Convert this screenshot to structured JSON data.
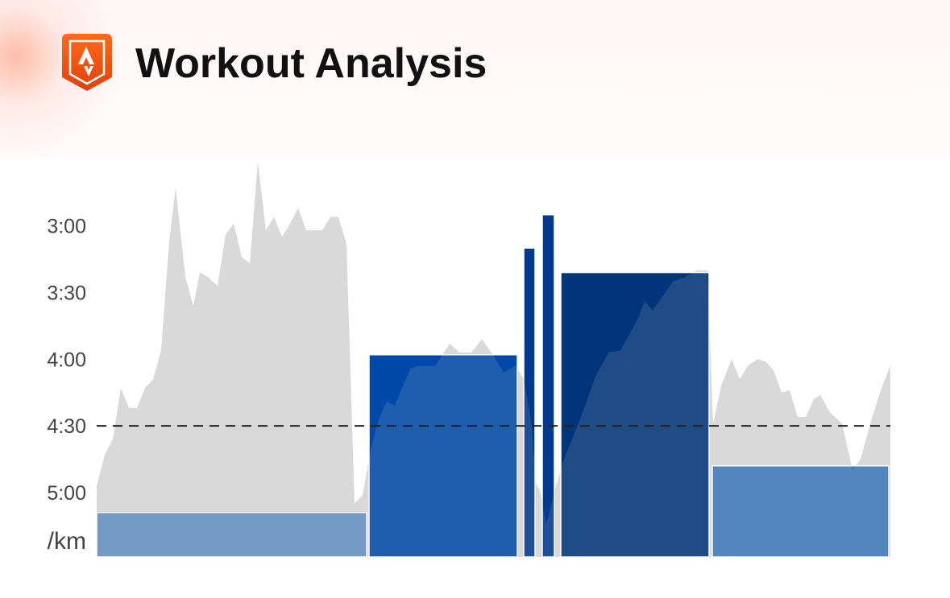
{
  "header": {
    "title": "Workout Analysis"
  },
  "chart_data": {
    "type": "bar",
    "y_unit": "/km",
    "ylim": [
      149,
      329
    ],
    "y_inverted": true,
    "yticks": [
      {
        "value": 180,
        "label": "3:00"
      },
      {
        "value": 210,
        "label": "3:30"
      },
      {
        "value": 240,
        "label": "4:00"
      },
      {
        "value": 270,
        "label": "4:30"
      },
      {
        "value": 300,
        "label": "5:00"
      }
    ],
    "xlim": [
      0,
      985
    ],
    "reference_line": 270,
    "bar_starts": [
      0,
      338,
      530,
      553,
      576,
      764
    ],
    "bar_ends": [
      335,
      522,
      544,
      568,
      760,
      983
    ],
    "values": [
      309,
      238,
      190,
      175,
      201,
      288
    ],
    "colors": [
      "#6690c3",
      "#0049a8",
      "#003a8c",
      "#003a8c",
      "#00357a",
      "#3d77bb"
    ],
    "profile": {
      "color": "#d9d9d9",
      "x": [
        0,
        10,
        20,
        30,
        40,
        50,
        60,
        70,
        80,
        90,
        98,
        110,
        120,
        128,
        138,
        150,
        160,
        170,
        180,
        190,
        200,
        210,
        220,
        230,
        240,
        250,
        260,
        280,
        290,
        300,
        310,
        320,
        330,
        340,
        350,
        360,
        370,
        380,
        390,
        400,
        420,
        438,
        450,
        465,
        478,
        490,
        505,
        520,
        530,
        540,
        545,
        550,
        558,
        570,
        580,
        600,
        620,
        635,
        650,
        670,
        680,
        690,
        700,
        715,
        730,
        745,
        758,
        765,
        775,
        788,
        798,
        808,
        820,
        830,
        840,
        850,
        860,
        870,
        880,
        890,
        898,
        910,
        925,
        938,
        948,
        960,
        975,
        985
      ],
      "values": [
        297,
        283,
        276,
        253,
        262,
        262,
        253,
        249,
        236,
        187,
        163,
        203,
        216,
        201,
        203,
        207,
        184,
        179,
        194,
        197,
        151,
        182,
        176,
        185,
        179,
        172,
        182,
        182,
        176,
        176,
        188,
        305,
        301,
        281,
        267,
        259,
        261,
        252,
        244,
        243,
        243,
        233,
        237,
        237,
        231,
        237,
        246,
        243,
        249,
        270,
        296,
        299,
        314,
        297,
        285,
        267,
        247,
        237,
        236,
        223,
        214,
        218,
        213,
        205,
        203,
        200,
        200,
        269,
        252,
        240,
        249,
        243,
        240,
        241,
        245,
        255,
        254,
        266,
        266,
        258,
        256,
        264,
        269,
        290,
        285,
        269,
        252,
        243
      ]
    }
  }
}
